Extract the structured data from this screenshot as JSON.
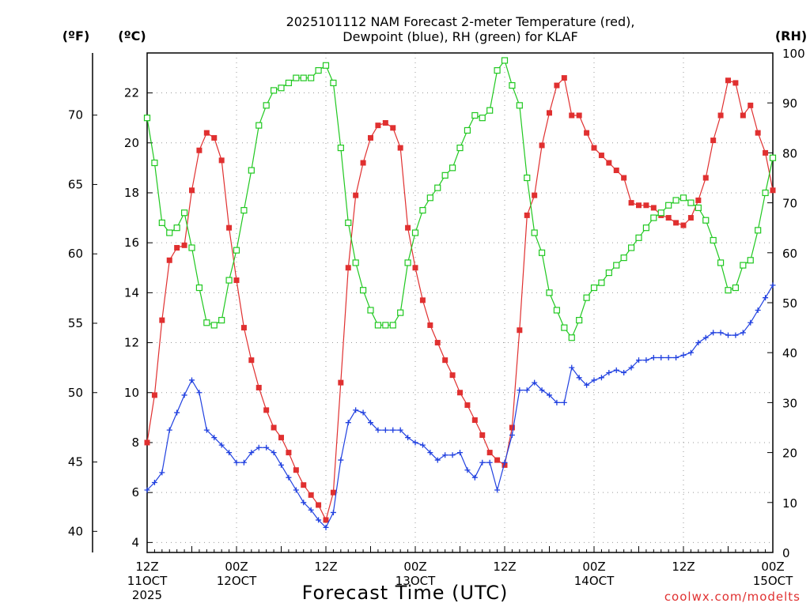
{
  "chart_data": {
    "type": "line",
    "title": "2025101112 NAM Forecast 2-meter Temperature (red),",
    "subtitle": "Dewpoint (blue), RH (green) for KLAF",
    "xlabel": "Forecast Time (UTC)",
    "credit": "coolwx.com/modelts",
    "units": {
      "fahrenheit": "(ºF)",
      "celsius": "(ºC)",
      "rh": "(RH)"
    },
    "x_range_hours": [
      0,
      84
    ],
    "x_ticks": [
      {
        "hour": 0,
        "lines": [
          "12Z",
          "11OCT",
          "2025"
        ]
      },
      {
        "hour": 12,
        "lines": [
          "00Z",
          "12OCT"
        ]
      },
      {
        "hour": 24,
        "lines": [
          "12Z"
        ]
      },
      {
        "hour": 36,
        "lines": [
          "00Z",
          "13OCT"
        ]
      },
      {
        "hour": 48,
        "lines": [
          "12Z"
        ]
      },
      {
        "hour": 60,
        "lines": [
          "00Z",
          "14OCT"
        ]
      },
      {
        "hour": 72,
        "lines": [
          "12Z"
        ]
      },
      {
        "hour": 84,
        "lines": [
          "00Z",
          "15OCT"
        ]
      }
    ],
    "y_celsius_range": [
      3.6,
      23.6
    ],
    "y_celsius_ticks": [
      4,
      6,
      8,
      10,
      12,
      14,
      16,
      18,
      20,
      22
    ],
    "y_fahrenheit_ticks": [
      40,
      45,
      50,
      55,
      60,
      65,
      70
    ],
    "y_rh_range": [
      0,
      100
    ],
    "y_rh_ticks": [
      0,
      10,
      20,
      30,
      40,
      50,
      60,
      70,
      80,
      90,
      100
    ],
    "series": [
      {
        "name": "Temperature (red)",
        "units": "C",
        "color": "#e03030",
        "marker": "filled-square",
        "values": [
          8.0,
          9.9,
          12.9,
          15.3,
          15.8,
          15.9,
          18.1,
          19.7,
          20.4,
          20.2,
          19.3,
          16.6,
          14.5,
          12.6,
          11.3,
          10.2,
          9.3,
          8.6,
          8.2,
          7.6,
          6.9,
          6.3,
          5.9,
          5.5,
          4.9,
          6.0,
          10.4,
          15.0,
          17.9,
          19.2,
          20.2,
          20.7,
          20.8,
          20.6,
          19.8,
          16.6,
          15.0,
          13.7,
          12.7,
          12.0,
          11.3,
          10.7,
          10.0,
          9.5,
          8.9,
          8.3,
          7.6,
          7.3,
          7.1,
          8.6,
          12.5,
          17.1,
          17.9,
          19.9,
          21.2,
          22.3,
          22.6,
          21.1,
          21.1,
          20.4,
          19.8,
          19.5,
          19.2,
          18.9,
          18.6,
          17.6,
          17.5,
          17.5,
          17.4,
          17.1,
          17.0,
          16.8,
          16.7,
          17.0,
          17.7,
          18.6,
          20.1,
          21.1,
          22.5,
          22.4,
          21.1,
          21.5,
          20.4,
          19.6,
          18.1
        ]
      },
      {
        "name": "Dewpoint (blue)",
        "units": "C",
        "color": "#2040e0",
        "marker": "plus",
        "values": [
          6.1,
          6.4,
          6.8,
          8.5,
          9.2,
          9.9,
          10.5,
          10.0,
          8.5,
          8.2,
          7.9,
          7.6,
          7.2,
          7.2,
          7.6,
          7.8,
          7.8,
          7.6,
          7.1,
          6.6,
          6.1,
          5.6,
          5.3,
          4.9,
          4.6,
          5.2,
          7.3,
          8.8,
          9.3,
          9.2,
          8.8,
          8.5,
          8.5,
          8.5,
          8.5,
          8.2,
          8.0,
          7.9,
          7.6,
          7.3,
          7.5,
          7.5,
          7.6,
          6.9,
          6.6,
          7.2,
          7.2,
          6.1,
          7.2,
          8.3,
          10.1,
          10.1,
          10.4,
          10.1,
          9.9,
          9.6,
          9.6,
          11.0,
          10.6,
          10.3,
          10.5,
          10.6,
          10.8,
          10.9,
          10.8,
          11.0,
          11.3,
          11.3,
          11.4,
          11.4,
          11.4,
          11.4,
          11.5,
          11.6,
          12.0,
          12.2,
          12.4,
          12.4,
          12.3,
          12.3,
          12.4,
          12.8,
          13.3,
          13.8,
          14.3
        ]
      },
      {
        "name": "RH (green)",
        "units": "%",
        "color": "#20c820",
        "marker": "open-square",
        "values": [
          87.0,
          78.0,
          66.0,
          64.0,
          65.0,
          68.0,
          61.0,
          53.0,
          46.0,
          45.5,
          46.5,
          54.5,
          60.5,
          68.5,
          76.5,
          85.5,
          89.5,
          92.5,
          93.0,
          94.0,
          95.0,
          95.0,
          95.0,
          96.5,
          97.5,
          94.0,
          81.0,
          66.0,
          58.0,
          52.5,
          48.5,
          45.5,
          45.5,
          45.5,
          48.0,
          58.0,
          64.0,
          68.5,
          71.0,
          73.0,
          75.5,
          77.0,
          81.0,
          84.5,
          87.5,
          87.0,
          88.5,
          96.5,
          98.5,
          93.5,
          89.5,
          75.0,
          64.0,
          60.0,
          52.0,
          48.5,
          45.0,
          43.0,
          46.5,
          51.0,
          53.0,
          54.0,
          56.0,
          57.5,
          59.0,
          61.0,
          63.0,
          65.0,
          67.0,
          68.0,
          69.5,
          70.5,
          71.0,
          70.0,
          69.0,
          66.5,
          62.5,
          58.0,
          52.5,
          53.0,
          57.5,
          58.5,
          64.5,
          72.0,
          79.0
        ]
      }
    ]
  }
}
